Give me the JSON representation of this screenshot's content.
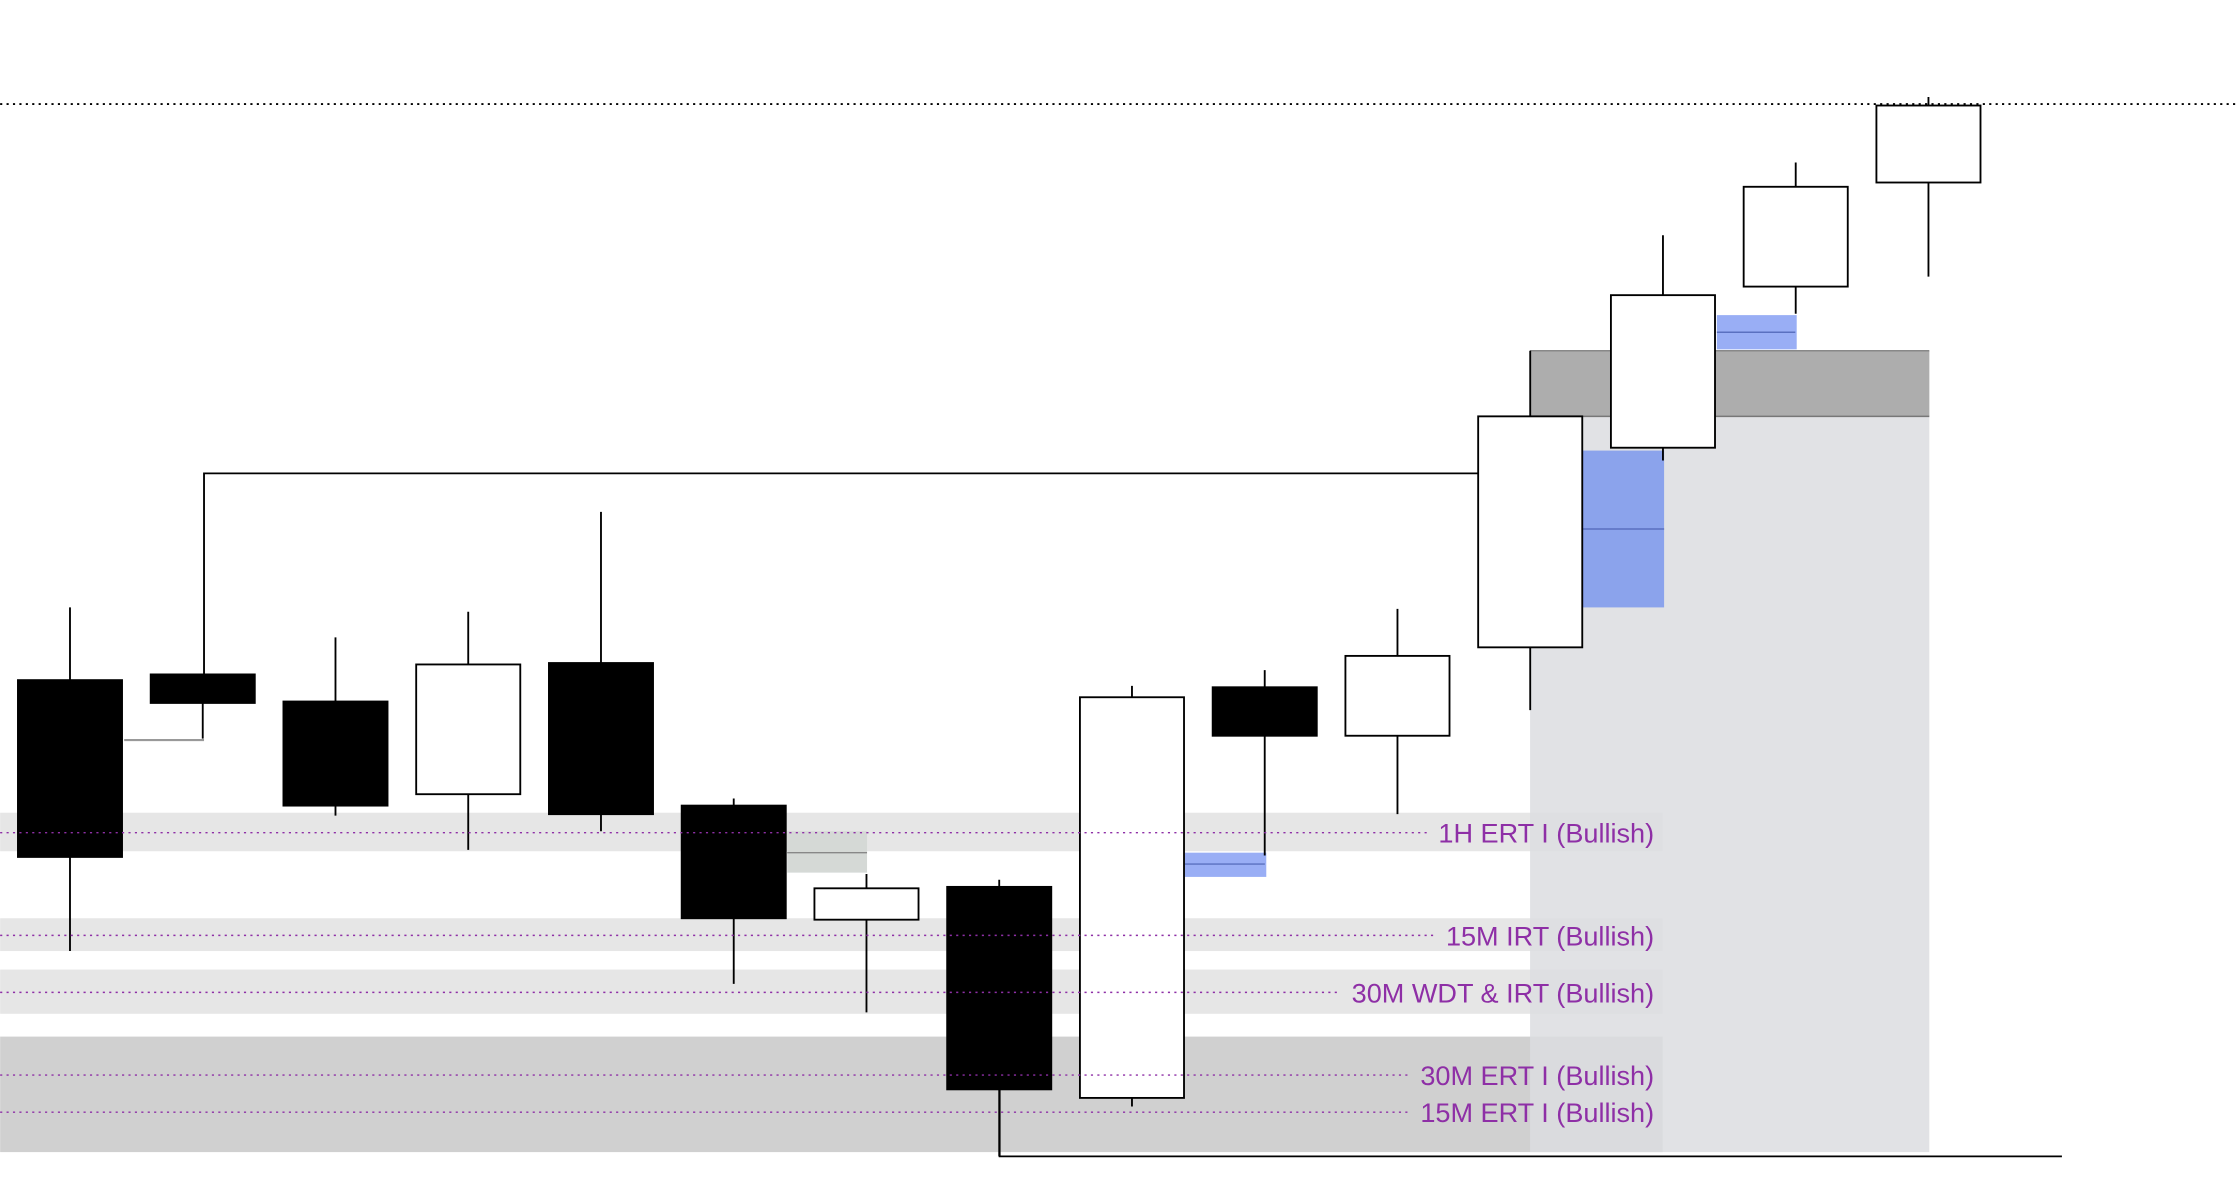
{
  "chart_data": {
    "type": "candlestick",
    "title": "",
    "xlabel": "",
    "ylabel": "",
    "grid": false,
    "note": "Prices in relative chart units (higher value = higher price); no axis labels visible",
    "candles": [
      {
        "open": 366,
        "close": 242,
        "high": 417,
        "low": 176
      },
      {
        "open": 370,
        "close": 350,
        "high": 370,
        "low": 325
      },
      {
        "open": 351,
        "close": 278,
        "high": 396,
        "low": 271
      },
      {
        "open": 286,
        "close": 377,
        "high": 414,
        "low": 247
      },
      {
        "open": 378,
        "close": 272,
        "high": 484,
        "low": 260
      },
      {
        "open": 278,
        "close": 199,
        "high": 283,
        "low": 153
      },
      {
        "open": 198,
        "close": 220,
        "high": 230,
        "low": 133
      },
      {
        "open": 221,
        "close": 79,
        "high": 226,
        "low": 32
      },
      {
        "open": 73,
        "close": 354,
        "high": 362,
        "low": 67
      },
      {
        "open": 361,
        "close": 327,
        "high": 373,
        "low": 243
      },
      {
        "open": 327,
        "close": 383,
        "high": 416,
        "low": 272
      },
      {
        "open": 389,
        "close": 551,
        "high": 597,
        "low": 345
      },
      {
        "open": 529,
        "close": 636,
        "high": 678,
        "low": 520
      },
      {
        "open": 642,
        "close": 712,
        "high": 729,
        "low": 623
      },
      {
        "open": 715,
        "close": 769,
        "high": 775,
        "low": 649
      }
    ],
    "zones": [
      {
        "label": "1H ERT I (Bullish)",
        "top": 273,
        "bottom": 246,
        "level": 259
      },
      {
        "label": "15M IRT (Bullish)",
        "top": 199,
        "bottom": 176,
        "level": 187
      },
      {
        "label": "30M WDT & IRT (Bullish)",
        "top": 163,
        "bottom": 132,
        "level": 147
      },
      {
        "label": "30M ERT I (Bullish)",
        "overlap_label": "15M ERT I (Bullish)",
        "top": 116,
        "bottom": 35,
        "level": 76
      }
    ],
    "high_level": 770,
    "colors": {
      "bullish": "#ffffff",
      "bearish": "#000000",
      "label": "#8e2fa6",
      "fvg": "#8ba3ec",
      "zone": "#e6e6e6",
      "zone_dark": "#d0d0d0"
    }
  }
}
